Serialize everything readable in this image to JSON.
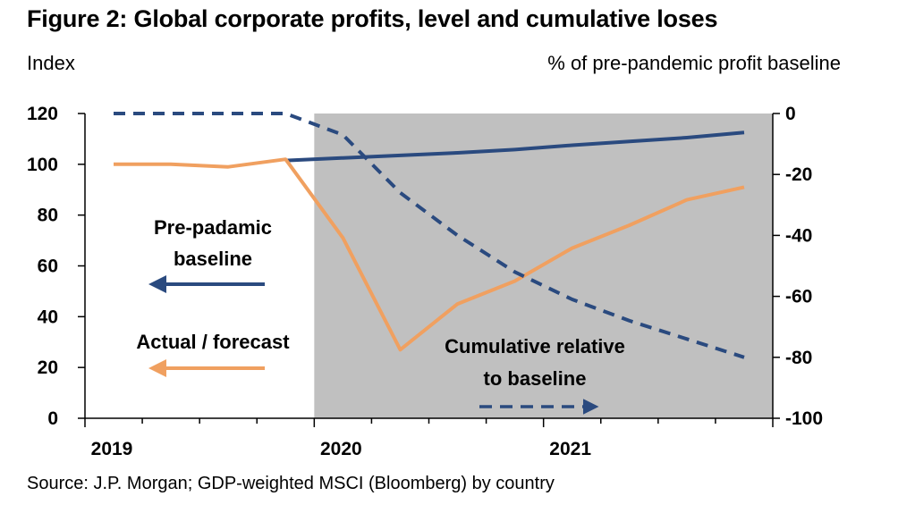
{
  "chart_data": {
    "type": "line",
    "title": "Figure 2: Global corporate profits, level and cumulative loses",
    "left_axis_label": "Index",
    "right_axis_label": "% of pre-pandemic profit baseline",
    "source": "Source: J.P. Morgan; GDP-weighted MSCI (Bloomberg) by country",
    "x": [
      "2019Q1",
      "2019Q2",
      "2019Q3",
      "2019Q4",
      "2020Q1",
      "2020Q2",
      "2020Q3",
      "2020Q4",
      "2021Q1",
      "2021Q2",
      "2021Q3",
      "2021Q4"
    ],
    "year_labels": [
      "2019",
      "2020",
      "2021"
    ],
    "left_axis": {
      "ylim": [
        0,
        120
      ],
      "ticks": [
        0,
        20,
        40,
        60,
        80,
        100,
        120
      ]
    },
    "right_axis": {
      "ylim": [
        -100,
        0
      ],
      "ticks": [
        0,
        -20,
        -40,
        -60,
        -80,
        -100
      ]
    },
    "shaded_region": {
      "from": "2020Q1",
      "to": "2021Q4",
      "color": "#c0c0c0"
    },
    "series": [
      {
        "name": "Pre-padamic baseline",
        "axis": "left",
        "style": "solid",
        "color": "#2a4a7f",
        "values": [
          null,
          null,
          null,
          101.5,
          102.5,
          103.5,
          104.5,
          105.8,
          107.5,
          109,
          110.5,
          112.5
        ]
      },
      {
        "name": "Actual / forecast",
        "axis": "left",
        "style": "solid",
        "color": "#f0a060",
        "values": [
          100,
          100,
          99,
          102,
          71,
          27,
          45,
          54,
          67,
          76,
          86,
          91
        ]
      },
      {
        "name": "Cumulative relative to baseline",
        "axis": "right",
        "style": "dashed",
        "color": "#2a4a7f",
        "values": [
          0,
          0,
          0,
          0,
          -7,
          -26,
          -40,
          -52,
          -61,
          -68,
          -74,
          -80
        ]
      }
    ],
    "annotations": {
      "baseline_line1": "Pre-padamic",
      "baseline_line2": "baseline",
      "actual": "Actual / forecast",
      "cumulative_line1": "Cumulative relative",
      "cumulative_line2": "to baseline"
    }
  }
}
